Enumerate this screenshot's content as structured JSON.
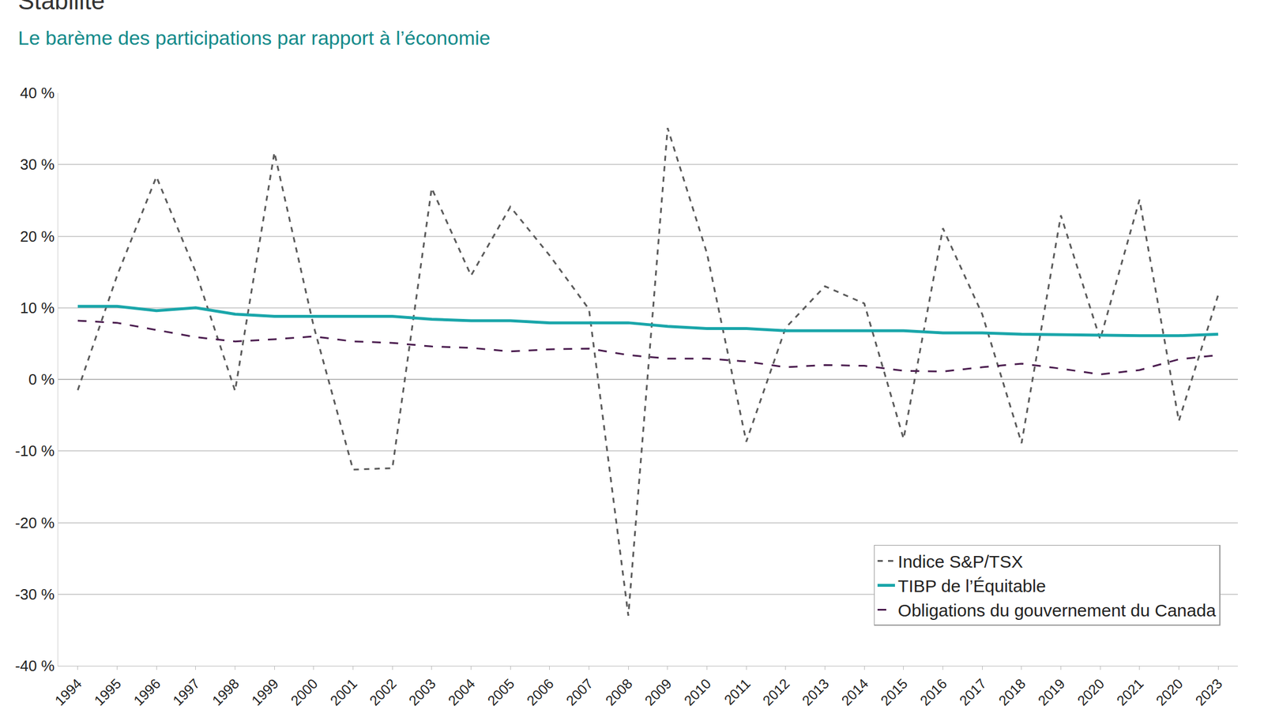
{
  "chart_data": {
    "type": "line",
    "title": "Stabilité",
    "subtitle": "Le barème des participations par rapport à l’économie",
    "categories": [
      "1994",
      "1995",
      "1996",
      "1997",
      "1998",
      "1999",
      "2000",
      "2001",
      "2002",
      "2003",
      "2004",
      "2005",
      "2006",
      "2007",
      "2008",
      "2009",
      "2010",
      "2011",
      "2012",
      "2013",
      "2014",
      "2015",
      "2016",
      "2017",
      "2018",
      "2019",
      "2020",
      "2021",
      "2020",
      "2023"
    ],
    "series": [
      {
        "name": "Indice S&P/TSX",
        "color": "#5a5a5a",
        "line_style": "dash",
        "values": [
          -1.5,
          14.5,
          28.3,
          15.0,
          -1.6,
          31.7,
          7.4,
          -12.6,
          -12.4,
          26.7,
          14.5,
          24.1,
          17.3,
          9.8,
          -33.0,
          35.1,
          17.6,
          -8.7,
          7.2,
          13.0,
          10.6,
          -8.3,
          21.1,
          9.1,
          -8.9,
          22.9,
          5.6,
          25.1,
          -5.8,
          11.8
        ]
      },
      {
        "name": "TIBP de l’Équitable",
        "color": "#1aa6aa",
        "line_style": "solid",
        "values": [
          10.2,
          10.2,
          9.6,
          10.0,
          9.1,
          8.8,
          8.8,
          8.8,
          8.8,
          8.4,
          8.2,
          8.2,
          7.9,
          7.9,
          7.9,
          7.4,
          7.1,
          7.1,
          6.8,
          6.8,
          6.8,
          6.8,
          6.5,
          6.5,
          6.3,
          6.2,
          6.2,
          6.1,
          6.1,
          6.3
        ]
      },
      {
        "name": "Obligations du gouvernement du Canada",
        "color": "#4b1d4f",
        "line_style": "longdash",
        "values": [
          8.2,
          7.9,
          6.9,
          5.9,
          5.3,
          5.6,
          6.0,
          5.3,
          5.1,
          4.6,
          4.4,
          3.9,
          4.2,
          4.3,
          3.4,
          2.9,
          2.9,
          2.5,
          1.7,
          2.0,
          1.9,
          1.2,
          1.1,
          1.7,
          2.2,
          1.5,
          0.7,
          1.3,
          2.8,
          3.4
        ]
      }
    ],
    "ylim": [
      -40,
      40
    ],
    "yticks": [
      {
        "value": -40,
        "label": "-40 %"
      },
      {
        "value": -30,
        "label": "-30 %"
      },
      {
        "value": -20,
        "label": "-20 %"
      },
      {
        "value": -10,
        "label": "-10 %"
      },
      {
        "value": 0,
        "label": "0 %"
      },
      {
        "value": 10,
        "label": "10 %"
      },
      {
        "value": 20,
        "label": "20 %"
      },
      {
        "value": 30,
        "label": "30 %"
      },
      {
        "value": 40,
        "label": "40 %"
      }
    ],
    "grid": true,
    "legend": "bottom right"
  }
}
